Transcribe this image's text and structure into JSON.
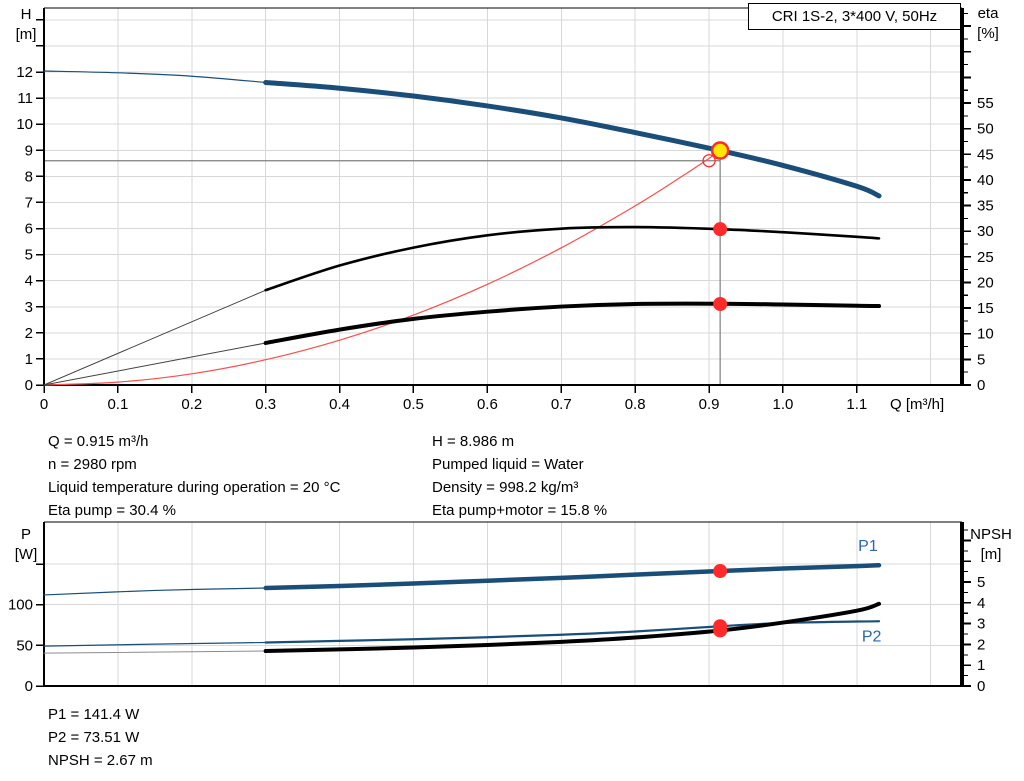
{
  "title_box": "CRI 1S-2, 3*400 V, 50Hz",
  "axis_headers": {
    "top_left": [
      "H",
      "[m]"
    ],
    "top_right": [
      "eta",
      "[%]"
    ],
    "bottom_left": [
      "P",
      "[W]"
    ],
    "bottom_right": [
      "NPSH",
      "[m]"
    ]
  },
  "info_top_left": [
    "Q = 0.915 m³/h",
    "n = 2980 rpm",
    "Liquid temperature during operation = 20 °C",
    "Eta pump = 30.4 %"
  ],
  "info_top_right": [
    "H = 8.986 m",
    "Pumped liquid = Water",
    "Density = 998.2 kg/m³",
    "Eta pump+motor = 15.8 %"
  ],
  "info_bottom": [
    "P1 = 141.4 W",
    "P2 = 73.51 W",
    "NPSH = 2.67 m"
  ],
  "colors": {
    "grid": "#D8D8D8",
    "axis": "#000000",
    "crosshair": "#7F7F7F",
    "curve_blue": "#1A4E79",
    "label_blue": "#2A65AD",
    "red": "#FF2A2A",
    "duty_yellow": "#FFE800"
  },
  "chart_data": [
    {
      "id": "top",
      "type": "line",
      "title": "CRI 1S-2, 3*400 V, 50Hz",
      "x_axis": {
        "title": "Q [m³/h]",
        "max": 1.2423,
        "gridlines": [
          0.1,
          0.2,
          0.3,
          0.4,
          0.5,
          0.6,
          0.7,
          0.8,
          0.9,
          1.0,
          1.1,
          1.2
        ],
        "tick_values": [
          0,
          0.1,
          0.2,
          0.3,
          0.4,
          0.5,
          0.6,
          0.7,
          0.8,
          0.9,
          1.0,
          1.1
        ],
        "tick_labels": [
          "0",
          "0.1",
          "0.2",
          "0.3",
          "0.4",
          "0.5",
          "0.6",
          "0.7",
          "0.8",
          "0.9",
          "1.0",
          "1.1"
        ]
      },
      "left_axis": {
        "label": "H [m]",
        "max": 14.456,
        "tick_values": [
          0,
          1,
          2,
          3,
          4,
          5,
          6,
          7,
          8,
          9,
          10,
          11,
          12,
          13,
          14
        ],
        "tick_labels": [
          "0",
          "1",
          "2",
          "3",
          "4",
          "5",
          "6",
          "7",
          "8",
          "9",
          "10",
          "11",
          "12"
        ]
      },
      "right_axis": {
        "label": "eta [%]",
        "max": 73.54,
        "minor_step": 2.5,
        "major_step": 5,
        "tick_max": 72.5,
        "label_values": [
          0,
          5,
          10,
          15,
          20,
          25,
          30,
          35,
          40,
          45,
          50,
          55
        ],
        "labels": [
          "0",
          "5",
          "10",
          "15",
          "20",
          "25",
          "30",
          "35",
          "40",
          "45",
          "50",
          "55"
        ]
      },
      "crosshair": {
        "q": 0.915,
        "v_top": 8.99,
        "h_value": 8.6
      },
      "series": [
        {
          "name": "qh-curve-extrapolated",
          "axis": "left",
          "color": "#1A4E79",
          "width": 1.2,
          "points": [
            [
              0,
              12.04
            ],
            [
              0.1,
              11.97
            ],
            [
              0.2,
              11.84
            ],
            [
              0.3,
              11.6
            ]
          ]
        },
        {
          "name": "qh-curve",
          "axis": "left",
          "color": "#1A4E79",
          "width": 5,
          "points": [
            [
              0.3,
              11.6
            ],
            [
              0.4,
              11.38
            ],
            [
              0.5,
              11.08
            ],
            [
              0.6,
              10.7
            ],
            [
              0.7,
              10.24
            ],
            [
              0.8,
              9.68
            ],
            [
              0.915,
              8.99
            ],
            [
              1.0,
              8.42
            ],
            [
              1.1,
              7.62
            ],
            [
              1.13,
              7.25
            ]
          ]
        },
        {
          "name": "system-curve",
          "axis": "left",
          "color": "#FF4D4D",
          "width": 1.2,
          "points": [
            [
              0,
              0
            ],
            [
              0.1,
              0.11
            ],
            [
              0.2,
              0.43
            ],
            [
              0.3,
              0.97
            ],
            [
              0.4,
              1.72
            ],
            [
              0.5,
              2.68
            ],
            [
              0.6,
              3.86
            ],
            [
              0.7,
              5.26
            ],
            [
              0.8,
              6.87
            ],
            [
              0.86,
              7.94
            ],
            [
              0.9,
              8.69
            ],
            [
              0.915,
              8.99
            ]
          ]
        },
        {
          "name": "eta-pump-extrapolated",
          "axis": "right",
          "color": "#404040",
          "width": 1,
          "points": [
            [
              0,
              0
            ],
            [
              0.3,
              18.5
            ]
          ]
        },
        {
          "name": "eta-pump-curve",
          "axis": "right",
          "color": "#000000",
          "width": 2.6,
          "points": [
            [
              0.3,
              18.5
            ],
            [
              0.4,
              23.3
            ],
            [
              0.5,
              26.8
            ],
            [
              0.6,
              29.2
            ],
            [
              0.7,
              30.5
            ],
            [
              0.8,
              30.8
            ],
            [
              0.915,
              30.4
            ],
            [
              1.0,
              29.8
            ],
            [
              1.1,
              28.9
            ],
            [
              1.13,
              28.6
            ]
          ]
        },
        {
          "name": "eta-pump-motor-extrapolated",
          "axis": "right",
          "color": "#404040",
          "width": 1,
          "points": [
            [
              0,
              0
            ],
            [
              0.3,
              8.2
            ]
          ]
        },
        {
          "name": "eta-pump-motor-curve",
          "axis": "right",
          "color": "#000000",
          "width": 4,
          "points": [
            [
              0.3,
              8.2
            ],
            [
              0.4,
              10.8
            ],
            [
              0.5,
              12.9
            ],
            [
              0.6,
              14.3
            ],
            [
              0.7,
              15.3
            ],
            [
              0.8,
              15.8
            ],
            [
              0.915,
              15.85
            ],
            [
              1.0,
              15.7
            ],
            [
              1.1,
              15.45
            ],
            [
              1.13,
              15.4
            ]
          ]
        }
      ],
      "markers": [
        {
          "name": "requested-duty-point",
          "type": "open",
          "q": 0.9,
          "v": 8.6,
          "axis": "left"
        },
        {
          "name": "duty-point",
          "type": "duty",
          "q": 0.915,
          "v": 8.99,
          "axis": "left"
        },
        {
          "name": "eta-pump-point",
          "type": "dot",
          "q": 0.915,
          "v": 30.4,
          "axis": "right"
        },
        {
          "name": "eta-pump-motor-point",
          "type": "dot",
          "q": 0.915,
          "v": 15.8,
          "axis": "right"
        }
      ],
      "annotations": []
    },
    {
      "id": "bottom",
      "type": "line",
      "title": "",
      "x_axis": {
        "title": "",
        "max": 1.2423,
        "gridlines": [
          0.1,
          0.2,
          0.3,
          0.4,
          0.5,
          0.6,
          0.7,
          0.8,
          0.9,
          1.0,
          1.1,
          1.2
        ],
        "tick_values": [],
        "tick_labels": []
      },
      "left_axis": {
        "label": "P [W]",
        "max": 201.7,
        "tick_values": [
          0,
          50,
          100,
          150
        ],
        "tick_labels": [
          "0",
          "50",
          "100"
        ]
      },
      "right_axis": {
        "label": "NPSH [m]",
        "max": 7.885,
        "minor_step": 0.5,
        "major_step": 1,
        "tick_max": 7.5,
        "label_values": [
          0,
          1,
          2,
          3,
          4,
          5
        ],
        "labels": [
          "0",
          "1",
          "2",
          "3",
          "4",
          "5"
        ]
      },
      "crosshair": null,
      "series": [
        {
          "name": "p1-curve-extrapolated",
          "axis": "left",
          "color": "#1A4E79",
          "width": 1.2,
          "points": [
            [
              0,
              112
            ],
            [
              0.15,
              117.5
            ],
            [
              0.3,
              120.5
            ]
          ]
        },
        {
          "name": "p1-curve",
          "axis": "left",
          "color": "#1A4E79",
          "width": 4.5,
          "points": [
            [
              0.3,
              120.5
            ],
            [
              0.4,
              123
            ],
            [
              0.5,
              126
            ],
            [
              0.6,
              129.5
            ],
            [
              0.7,
              133
            ],
            [
              0.8,
              137
            ],
            [
              0.915,
              141.4
            ],
            [
              1.0,
              144.5
            ],
            [
              1.1,
              147.5
            ],
            [
              1.13,
              148.5
            ]
          ]
        },
        {
          "name": "p2-curve-extrapolated",
          "axis": "left",
          "color": "#1A4E79",
          "width": 1.2,
          "points": [
            [
              0,
              49
            ],
            [
              0.15,
              51.5
            ],
            [
              0.3,
              53.5
            ]
          ]
        },
        {
          "name": "p2-curve",
          "axis": "left",
          "color": "#1A4E79",
          "width": 2.2,
          "points": [
            [
              0.3,
              53.5
            ],
            [
              0.4,
              55.5
            ],
            [
              0.5,
              57.5
            ],
            [
              0.6,
              60
            ],
            [
              0.7,
              63
            ],
            [
              0.8,
              67
            ],
            [
              0.915,
              73.5
            ],
            [
              1.0,
              77.5
            ],
            [
              1.1,
              79.3
            ],
            [
              1.13,
              79.6
            ]
          ]
        },
        {
          "name": "npsh-curve-extrapolated",
          "axis": "right",
          "color": "#8C8C8C",
          "width": 1,
          "points": [
            [
              0,
              1.58
            ],
            [
              0.3,
              1.68
            ]
          ]
        },
        {
          "name": "npsh-curve",
          "axis": "right",
          "color": "#000000",
          "width": 4,
          "points": [
            [
              0.3,
              1.68
            ],
            [
              0.4,
              1.76
            ],
            [
              0.5,
              1.85
            ],
            [
              0.6,
              1.97
            ],
            [
              0.7,
              2.12
            ],
            [
              0.8,
              2.33
            ],
            [
              0.915,
              2.67
            ],
            [
              1.0,
              3.05
            ],
            [
              1.1,
              3.62
            ],
            [
              1.13,
              3.95
            ]
          ]
        }
      ],
      "markers": [
        {
          "name": "p1-point",
          "type": "dot",
          "q": 0.915,
          "v": 141.4,
          "axis": "left"
        },
        {
          "name": "p2-point",
          "type": "dot",
          "q": 0.915,
          "v": 73.5,
          "axis": "left"
        },
        {
          "name": "npsh-point",
          "type": "dot",
          "q": 0.915,
          "v": 2.67,
          "axis": "right"
        }
      ],
      "annotations": [
        {
          "name": "p1-curve-label",
          "text": "P1",
          "q": 1.115,
          "v": 172,
          "axis": "left"
        },
        {
          "name": "p2-curve-label",
          "text": "P2",
          "q": 1.12,
          "v": 61,
          "axis": "left"
        }
      ]
    }
  ]
}
